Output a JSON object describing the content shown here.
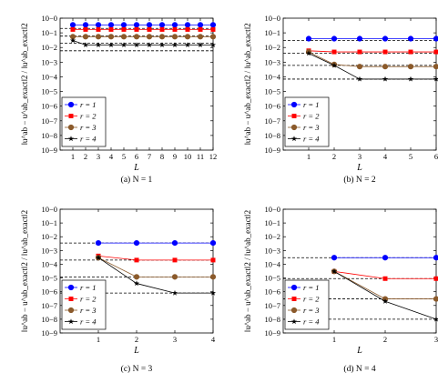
{
  "chart_data": [
    {
      "type": "line",
      "caption": "(a) N = 1",
      "xlabel": "L",
      "ylabel": "‖u^ab − u^ab_exact‖2 / ‖u^ab_exact‖2",
      "yscale": "log",
      "ylim": [
        1e-09,
        1
      ],
      "xlim": [
        0,
        12
      ],
      "xticks": [
        1,
        2,
        3,
        4,
        5,
        6,
        7,
        8,
        9,
        10,
        11,
        12
      ],
      "yticks": [
        "10−9",
        "10−8",
        "10−7",
        "10−6",
        "10−5",
        "10−4",
        "10−3",
        "10−2",
        "10−1",
        "10−0"
      ],
      "legend_position": "bottom-left",
      "series": [
        {
          "name": "r = 1",
          "color": "#0000ff",
          "marker": "circle",
          "x": [
            1,
            2,
            3,
            4,
            5,
            6,
            7,
            8,
            9,
            10,
            11,
            12
          ],
          "values": [
            0.35,
            0.35,
            0.35,
            0.35,
            0.35,
            0.35,
            0.35,
            0.35,
            0.35,
            0.35,
            0.35,
            0.35
          ]
        },
        {
          "name": "r = 2",
          "color": "#ff0000",
          "marker": "square",
          "x": [
            1,
            2,
            3,
            4,
            5,
            6,
            7,
            8,
            9,
            10,
            11,
            12
          ],
          "values": [
            0.17,
            0.17,
            0.17,
            0.17,
            0.17,
            0.17,
            0.17,
            0.17,
            0.17,
            0.17,
            0.17,
            0.17
          ]
        },
        {
          "name": "r = 3",
          "color": "#8b5a2b",
          "marker": "circle",
          "x": [
            1,
            2,
            3,
            4,
            5,
            6,
            7,
            8,
            9,
            10,
            11,
            12
          ],
          "values": [
            0.055,
            0.055,
            0.055,
            0.055,
            0.055,
            0.055,
            0.055,
            0.055,
            0.055,
            0.055,
            0.055,
            0.055
          ]
        },
        {
          "name": "r = 4",
          "color": "#000000",
          "marker": "star",
          "x": [
            1,
            2,
            3,
            4,
            5,
            6,
            7,
            8,
            9,
            10,
            11,
            12
          ],
          "values": [
            0.03,
            0.015,
            0.015,
            0.015,
            0.015,
            0.015,
            0.015,
            0.015,
            0.015,
            0.015,
            0.015,
            0.015
          ]
        }
      ],
      "reference_lines": [
        0.2,
        0.06,
        0.02,
        0.006
      ]
    },
    {
      "type": "line",
      "caption": "(b) N = 2",
      "xlabel": "L",
      "ylabel": "‖u^ab − u^ab_exact‖2 / ‖u^ab_exact‖2",
      "yscale": "log",
      "ylim": [
        1e-09,
        1
      ],
      "xlim": [
        0,
        6
      ],
      "xticks": [
        1,
        2,
        3,
        4,
        5,
        6
      ],
      "yticks": [
        "10−9",
        "10−8",
        "10−7",
        "10−6",
        "10−5",
        "10−4",
        "10−3",
        "10−2",
        "10−1",
        "10−0"
      ],
      "legend_position": "bottom-left",
      "series": [
        {
          "name": "r = 1",
          "color": "#0000ff",
          "marker": "circle",
          "x": [
            1,
            2,
            3,
            4,
            5,
            6
          ],
          "values": [
            0.04,
            0.04,
            0.04,
            0.04,
            0.04,
            0.04
          ]
        },
        {
          "name": "r = 2",
          "color": "#ff0000",
          "marker": "square",
          "x": [
            1,
            2,
            3,
            4,
            5,
            6
          ],
          "values": [
            0.006,
            0.005,
            0.005,
            0.005,
            0.005,
            0.005
          ]
        },
        {
          "name": "r = 3",
          "color": "#8b5a2b",
          "marker": "circle",
          "x": [
            1,
            2,
            3,
            4,
            5,
            6
          ],
          "values": [
            0.005,
            0.0007,
            0.0005,
            0.0005,
            0.0005,
            0.0005
          ]
        },
        {
          "name": "r = 4",
          "color": "#000000",
          "marker": "star",
          "x": [
            1,
            2,
            3,
            4,
            5,
            6
          ],
          "values": [
            0.004,
            0.0006,
            7e-05,
            7e-05,
            7e-05,
            7e-05
          ]
        }
      ],
      "reference_lines": [
        0.03,
        0.004,
        0.0006,
        7e-05
      ]
    },
    {
      "type": "line",
      "caption": "(c) N = 3",
      "xlabel": "L",
      "ylabel": "‖u^ab − u^ab_exact‖2 / ‖u^ab_exact‖2",
      "yscale": "log",
      "ylim": [
        1e-09,
        1
      ],
      "xlim": [
        0,
        4
      ],
      "xticks": [
        1,
        2,
        3,
        4
      ],
      "yticks": [
        "10−9",
        "10−8",
        "10−7",
        "10−6",
        "10−5",
        "10−4",
        "10−3",
        "10−2",
        "10−1",
        "10−0"
      ],
      "legend_position": "bottom-left",
      "series": [
        {
          "name": "r = 1",
          "color": "#0000ff",
          "marker": "circle",
          "x": [
            1,
            2,
            3,
            4
          ],
          "values": [
            0.0035,
            0.0035,
            0.0035,
            0.0035
          ]
        },
        {
          "name": "r = 2",
          "color": "#ff0000",
          "marker": "square",
          "x": [
            1,
            2,
            3,
            4
          ],
          "values": [
            0.0004,
            0.0002,
            0.0002,
            0.0002
          ]
        },
        {
          "name": "r = 3",
          "color": "#8b5a2b",
          "marker": "circle",
          "x": [
            1,
            2,
            3,
            4
          ],
          "values": [
            0.0003,
            1.2e-05,
            1.2e-05,
            1.2e-05
          ]
        },
        {
          "name": "r = 4",
          "color": "#000000",
          "marker": "star",
          "x": [
            1,
            2,
            3,
            4
          ],
          "values": [
            0.0003,
            4e-06,
            8e-07,
            8e-07
          ]
        }
      ],
      "reference_lines": [
        0.0035,
        0.0002,
        1.2e-05,
        8e-07
      ]
    },
    {
      "type": "line",
      "caption": "(d) N = 4",
      "xlabel": "L",
      "ylabel": "‖u^ab − u^ab_exact‖2 / ‖u^ab_exact‖2",
      "yscale": "log",
      "ylim": [
        1e-09,
        1
      ],
      "xlim": [
        0,
        3
      ],
      "xticks": [
        1,
        2,
        3
      ],
      "yticks": [
        "10−9",
        "10−8",
        "10−7",
        "10−6",
        "10−5",
        "10−4",
        "10−3",
        "10−2",
        "10−1",
        "10−0"
      ],
      "legend_position": "bottom-left",
      "series": [
        {
          "name": "r = 1",
          "color": "#0000ff",
          "marker": "circle",
          "x": [
            1,
            2,
            3
          ],
          "values": [
            0.0003,
            0.0003,
            0.0003
          ]
        },
        {
          "name": "r = 2",
          "color": "#ff0000",
          "marker": "square",
          "x": [
            1,
            2,
            3
          ],
          "values": [
            3e-05,
            9e-06,
            9e-06
          ]
        },
        {
          "name": "r = 3",
          "color": "#8b5a2b",
          "marker": "circle",
          "x": [
            1,
            2,
            3
          ],
          "values": [
            3e-05,
            3e-07,
            3e-07
          ]
        },
        {
          "name": "r = 4",
          "color": "#000000",
          "marker": "star",
          "x": [
            1,
            2,
            3
          ],
          "values": [
            3e-05,
            2e-07,
            1e-08
          ]
        }
      ],
      "reference_lines": [
        0.0003,
        9e-06,
        3e-07,
        1e-08
      ]
    }
  ]
}
